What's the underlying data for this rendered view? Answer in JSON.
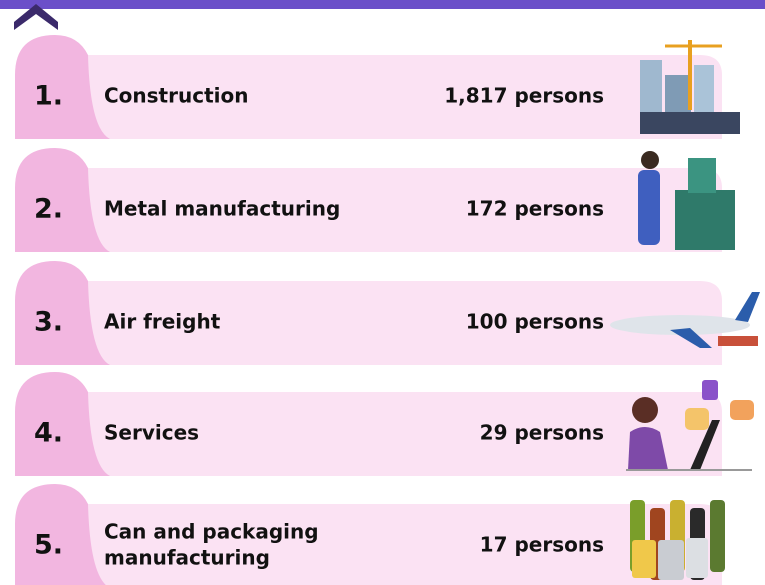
{
  "items": [
    {
      "rank": "1.",
      "label": [
        "Construction"
      ],
      "count": "1,817 persons"
    },
    {
      "rank": "2.",
      "label": [
        "Metal manufacturing"
      ],
      "count": "172 persons"
    },
    {
      "rank": "3.",
      "label": [
        "Air freight"
      ],
      "count": "100 persons"
    },
    {
      "rank": "4.",
      "label": [
        "Services"
      ],
      "count": "29 persons"
    },
    {
      "rank": "5.",
      "label": [
        "Can and packaging",
        "manufacturing"
      ],
      "count": "17 persons"
    }
  ]
}
